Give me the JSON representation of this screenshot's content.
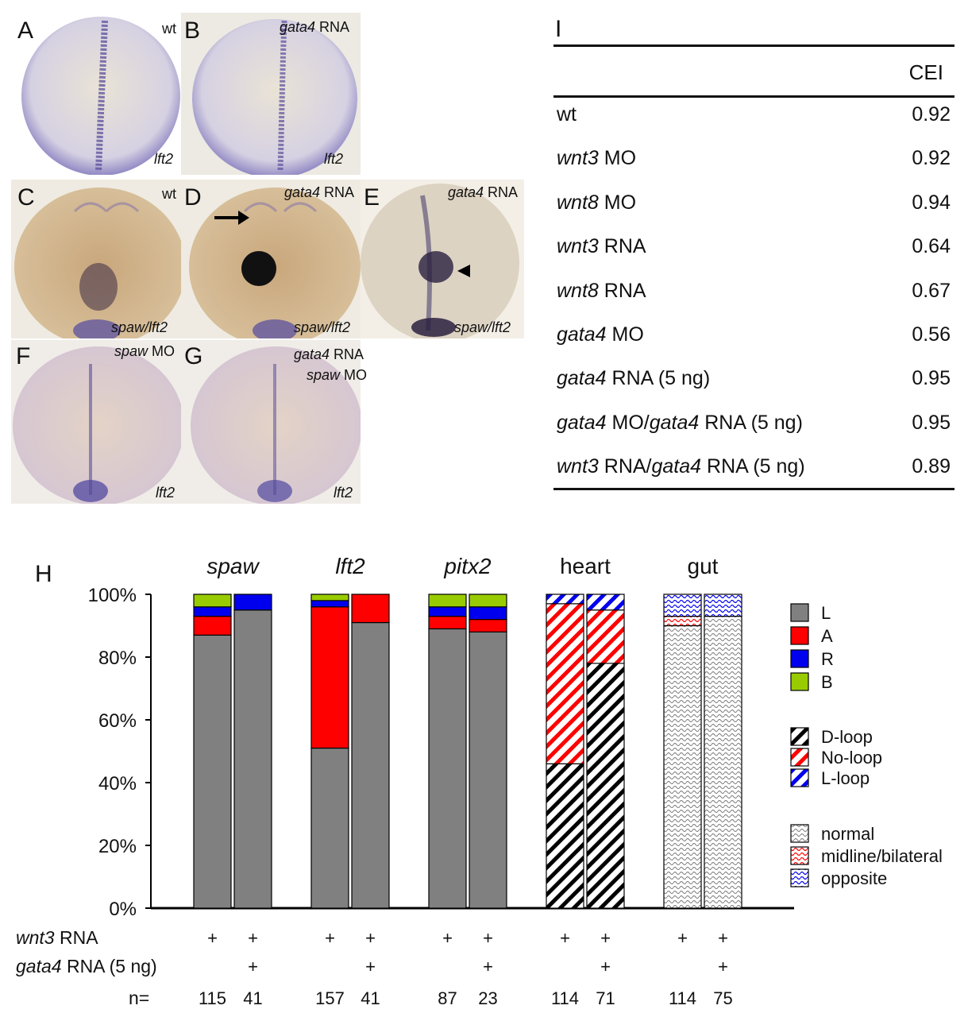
{
  "panels": [
    {
      "id": "A",
      "label": "A",
      "gene": "lft2",
      "treatment": "wt"
    },
    {
      "id": "B",
      "label": "B",
      "gene": "lft2",
      "treatment_gene": "gata4",
      "treatment_rest": " RNA"
    },
    {
      "id": "C",
      "label": "C",
      "gene": "spaw/lft2",
      "treatment": "wt"
    },
    {
      "id": "D",
      "label": "D",
      "gene": "spaw/lft2",
      "treatment_gene": "gata4",
      "treatment_rest": " RNA"
    },
    {
      "id": "E",
      "label": "E",
      "gene": "spaw/lft2",
      "treatment_gene": "gata4",
      "treatment_rest": " RNA"
    },
    {
      "id": "F",
      "label": "F",
      "gene": "lft2",
      "treatment_gene": "spaw",
      "treatment_rest": " MO"
    },
    {
      "id": "G",
      "label": "G",
      "gene": "lft2",
      "treatment_gene": "gata4",
      "treatment_rest": " RNA",
      "treatment2_gene": "spaw",
      "treatment2_rest": " MO"
    }
  ],
  "table": {
    "label": "I",
    "header": "CEI",
    "rows": [
      {
        "parts": [
          {
            "t": "wt",
            "i": false
          }
        ],
        "value": "0.92"
      },
      {
        "parts": [
          {
            "t": "wnt3",
            "i": true
          },
          {
            "t": " MO",
            "i": false
          }
        ],
        "value": "0.92"
      },
      {
        "parts": [
          {
            "t": "wnt8",
            "i": true
          },
          {
            "t": " MO",
            "i": false
          }
        ],
        "value": "0.94"
      },
      {
        "parts": [
          {
            "t": "wnt3",
            "i": true
          },
          {
            "t": " RNA",
            "i": false
          }
        ],
        "value": "0.64"
      },
      {
        "parts": [
          {
            "t": "wnt8",
            "i": true
          },
          {
            "t": " RNA",
            "i": false
          }
        ],
        "value": "0.67"
      },
      {
        "parts": [
          {
            "t": "gata4",
            "i": true
          },
          {
            "t": " MO",
            "i": false
          }
        ],
        "value": "0.56"
      },
      {
        "parts": [
          {
            "t": "gata4",
            "i": true
          },
          {
            "t": " RNA (5 ng)",
            "i": false
          }
        ],
        "value": "0.95"
      },
      {
        "parts": [
          {
            "t": "gata4",
            "i": true
          },
          {
            "t": " MO/",
            "i": false
          },
          {
            "t": "gata4",
            "i": true
          },
          {
            "t": " RNA (5 ng)",
            "i": false
          }
        ],
        "value": "0.95"
      },
      {
        "parts": [
          {
            "t": "wnt3",
            "i": true
          },
          {
            "t": " RNA/",
            "i": false
          },
          {
            "t": "gata4",
            "i": true
          },
          {
            "t": " RNA (5 ng)",
            "i": false
          }
        ],
        "value": "0.89"
      }
    ]
  },
  "chart_data": {
    "type": "bar",
    "stacked": true,
    "panel_label": "H",
    "ylim": [
      0,
      100
    ],
    "yticks": [
      "0%",
      "20%",
      "40%",
      "60%",
      "80%",
      "100%"
    ],
    "groups": [
      {
        "title": "spaw",
        "italic": true,
        "scheme": "spaw_lft2_pitx2",
        "bars": [
          {
            "n": "115",
            "wnt3": "+",
            "gata4": "",
            "values": [
              87,
              6,
              3,
              4
            ]
          },
          {
            "n": "41",
            "wnt3": "+",
            "gata4": "+",
            "values": [
              95,
              0,
              5,
              0
            ]
          }
        ]
      },
      {
        "title": "lft2",
        "italic": true,
        "scheme": "spaw_lft2_pitx2",
        "bars": [
          {
            "n": "157",
            "wnt3": "+",
            "gata4": "",
            "values": [
              51,
              45,
              2,
              2
            ]
          },
          {
            "n": "41",
            "wnt3": "+",
            "gata4": "+",
            "values": [
              91,
              9,
              0,
              0
            ]
          }
        ]
      },
      {
        "title": "pitx2",
        "italic": true,
        "scheme": "spaw_lft2_pitx2",
        "bars": [
          {
            "n": "87",
            "wnt3": "+",
            "gata4": "",
            "values": [
              89,
              4,
              3,
              4
            ]
          },
          {
            "n": "23",
            "wnt3": "+",
            "gata4": "+",
            "values": [
              88,
              4,
              4,
              4
            ]
          }
        ]
      },
      {
        "title": "heart",
        "italic": false,
        "scheme": "heart",
        "bars": [
          {
            "n": "114",
            "wnt3": "+",
            "gata4": "",
            "values": [
              46,
              51,
              3
            ]
          },
          {
            "n": "71",
            "wnt3": "+",
            "gata4": "+",
            "values": [
              78,
              17,
              5
            ]
          }
        ]
      },
      {
        "title": "gut",
        "italic": false,
        "scheme": "gut",
        "bars": [
          {
            "n": "114",
            "wnt3": "+",
            "gata4": "",
            "values": [
              90,
              3,
              7
            ]
          },
          {
            "n": "75",
            "wnt3": "+",
            "gata4": "+",
            "values": [
              93,
              0,
              7
            ]
          }
        ]
      }
    ],
    "row_labels": [
      {
        "gene": "wnt3",
        "rest": " RNA"
      },
      {
        "gene": "gata4",
        "rest": " RNA (5 ng)"
      },
      {
        "gene": "",
        "rest": "n="
      }
    ],
    "legends": {
      "spaw_lft2_pitx2": [
        {
          "label": "L",
          "color": "#808080"
        },
        {
          "label": "A",
          "color": "#ff0000"
        },
        {
          "label": "R",
          "color": "#0000ee"
        },
        {
          "label": "B",
          "color": "#99cc00"
        }
      ],
      "heart": [
        {
          "label": "D-loop",
          "color": "#000000"
        },
        {
          "label": "No-loop",
          "color": "#ff0000"
        },
        {
          "label": "L-loop",
          "color": "#0000ee"
        }
      ],
      "gut": [
        {
          "label": "normal",
          "color": "#555555"
        },
        {
          "label": "midline/bilateral",
          "color": "#ff0000"
        },
        {
          "label": "opposite",
          "color": "#0000ee"
        }
      ]
    }
  }
}
